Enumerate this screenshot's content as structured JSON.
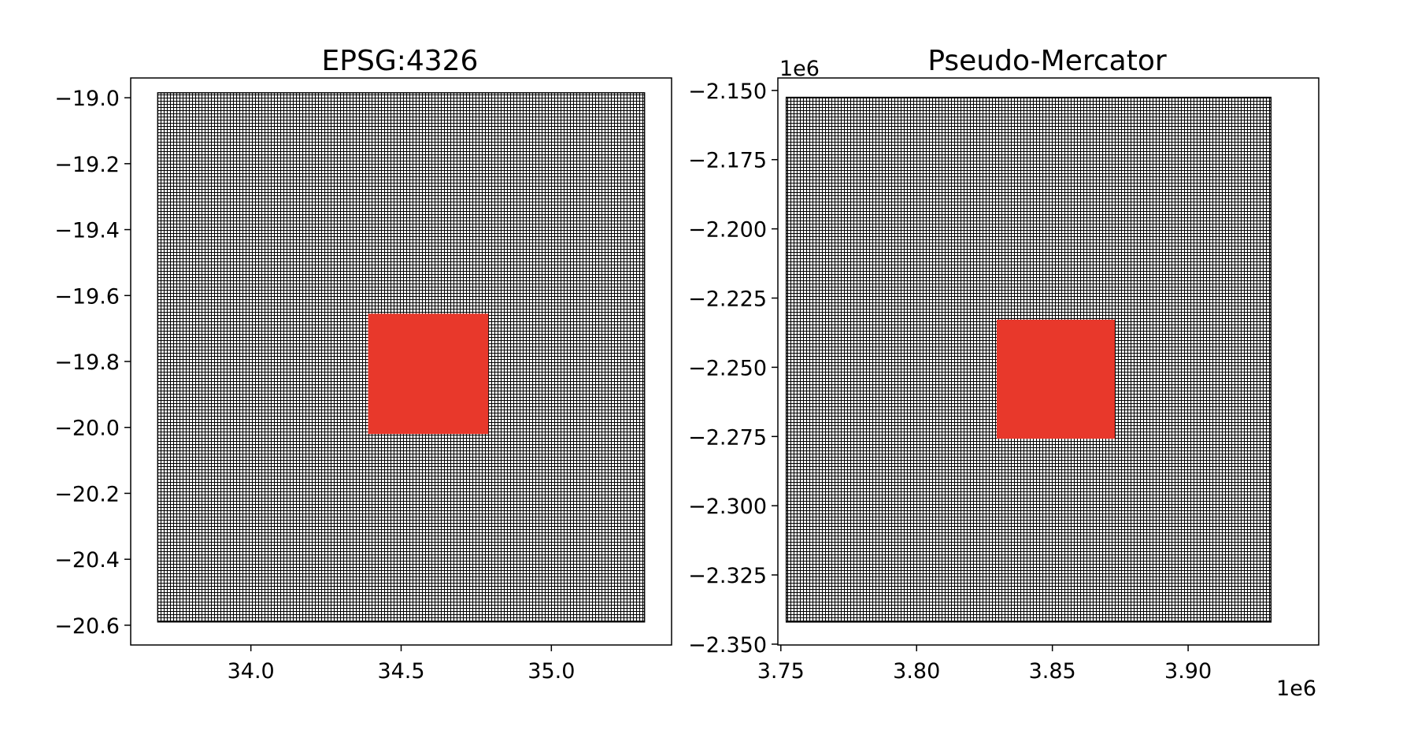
{
  "colors": {
    "grid": "#000000",
    "highlight": "#e8382b",
    "background": "#ffffff"
  },
  "chart_data": [
    {
      "type": "heatmap",
      "title": "EPSG:4326",
      "xlabel": "",
      "ylabel": "",
      "xlim": [
        33.6,
        35.4
      ],
      "ylim": [
        -20.66,
        -18.94
      ],
      "x_ticks": [
        34.0,
        34.5,
        35.0
      ],
      "x_tick_labels": [
        "34.0",
        "34.5",
        "35.0"
      ],
      "y_ticks": [
        -19.0,
        -19.2,
        -19.4,
        -19.6,
        -19.8,
        -20.0,
        -20.2,
        -20.4,
        -20.6
      ],
      "y_tick_labels": [
        "−19.0",
        "−19.2",
        "−19.4",
        "−19.6",
        "−19.8",
        "−20.0",
        "−20.2",
        "−20.4",
        "−20.6"
      ],
      "grid_extent": {
        "x": [
          33.69,
          35.31
        ],
        "y": [
          -20.59,
          -18.985
        ]
      },
      "highlight_extent": {
        "x": [
          34.39,
          34.79
        ],
        "y": [
          -20.02,
          -19.655
        ]
      },
      "x_offset_label": "",
      "y_offset_label": ""
    },
    {
      "type": "heatmap",
      "title": "Pseudo-Mercator",
      "xlabel": "",
      "ylabel": "",
      "xlim": [
        3.7489,
        3.9481
      ],
      "ylim": [
        -2.3503,
        -2.1455
      ],
      "x_ticks": [
        3.75,
        3.8,
        3.85,
        3.9
      ],
      "x_tick_labels": [
        "3.75",
        "3.80",
        "3.85",
        "3.90"
      ],
      "y_ticks": [
        -2.15,
        -2.175,
        -2.2,
        -2.225,
        -2.25,
        -2.275,
        -2.3,
        -2.325,
        -2.35
      ],
      "y_tick_labels": [
        "−2.150",
        "−2.175",
        "−2.200",
        "−2.225",
        "−2.250",
        "−2.275",
        "−2.300",
        "−2.325",
        "−2.350"
      ],
      "grid_extent": {
        "x": [
          3.752,
          3.9305
        ],
        "y": [
          -2.342,
          -2.1525
        ]
      },
      "highlight_extent": {
        "x": [
          3.8295,
          3.873
        ],
        "y": [
          -2.2758,
          -2.2328
        ]
      },
      "x_offset_label": "1e6",
      "y_offset_label": "1e6"
    }
  ]
}
